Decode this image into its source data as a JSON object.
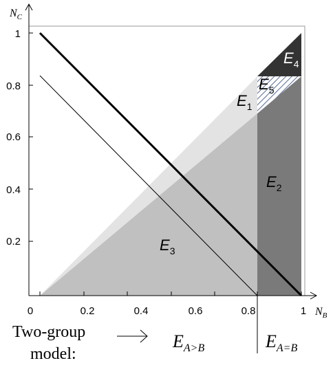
{
  "axes": {
    "x": {
      "name": "N",
      "subscript": "B",
      "ticks": [
        "0",
        "0.2",
        "0.4",
        "0.6",
        "0.8",
        "1"
      ],
      "range": [
        0,
        1
      ]
    },
    "y": {
      "name": "N",
      "subscript": "C",
      "ticks": [
        "0.2",
        "0.4",
        "0.6",
        "0.8",
        "1"
      ],
      "range": [
        0,
        1
      ]
    }
  },
  "regions": [
    {
      "id": "E1",
      "letter": "E",
      "index": "1",
      "fill": "#e3e3e3"
    },
    {
      "id": "E2",
      "letter": "E",
      "index": "2",
      "fill": "#7a7a7a"
    },
    {
      "id": "E3",
      "letter": "E",
      "index": "3",
      "fill": "#c0c0c0"
    },
    {
      "id": "E4",
      "letter": "E",
      "index": "4",
      "fill": "#333333"
    },
    {
      "id": "E5",
      "letter": "E",
      "index": "5",
      "fill": "hatched"
    }
  ],
  "threshold_nb": 0.84,
  "lines": {
    "thick": {
      "from": [
        0,
        1
      ],
      "to": [
        1,
        0
      ]
    },
    "thin": {
      "from": [
        0,
        0.84
      ],
      "to": [
        0.84,
        0
      ]
    }
  },
  "caption": {
    "line1": "Two-group",
    "line2": "model:",
    "arrow": "→",
    "label_left": {
      "letter": "E",
      "subscript": "A>B"
    },
    "label_right": {
      "letter": "E",
      "subscript": "A=B"
    }
  }
}
